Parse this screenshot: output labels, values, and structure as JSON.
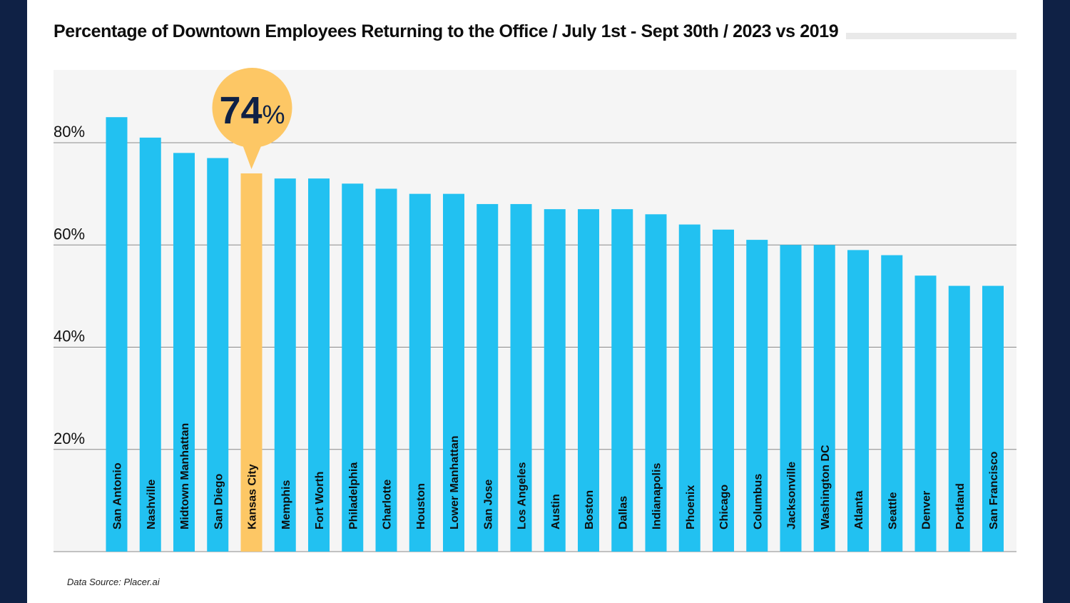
{
  "source_note": "Data Source: Placer.ai",
  "colors": {
    "bar": "#22c1f1",
    "highlight": "#fdc765",
    "panel": "#f5f5f5",
    "frame": "#0f2145"
  },
  "chart_data": {
    "type": "bar",
    "title": "Percentage of Downtown Employees Returning to the Office / July 1st - Sept 30th / 2023 vs 2019",
    "xlabel": "",
    "ylabel": "",
    "ylim": [
      0,
      92
    ],
    "yticks": [
      20,
      40,
      60,
      80
    ],
    "ytick_labels": [
      "20%",
      "40%",
      "60%",
      "80%"
    ],
    "grid": true,
    "categories": [
      "San Antonio",
      "Nashville",
      "Midtown Manhattan",
      "San Diego",
      "Kansas City",
      "Memphis",
      "Fort Worth",
      "Philadelphia",
      "Charlotte",
      "Houston",
      "Lower Manhattan",
      "San Jose",
      "Los Angeles",
      "Austin",
      "Boston",
      "Dallas",
      "Indianapolis",
      "Phoenix",
      "Chicago",
      "Columbus",
      "Jacksonville",
      "Washington DC",
      "Atlanta",
      "Seattle",
      "Denver",
      "Portland",
      "San Francisco"
    ],
    "values": [
      85,
      81,
      78,
      77,
      74,
      73,
      73,
      72,
      71,
      70,
      70,
      68,
      68,
      67,
      67,
      67,
      66,
      64,
      63,
      61,
      60,
      60,
      59,
      58,
      54,
      52,
      52
    ],
    "highlight_index": 4,
    "callout": {
      "number": "74",
      "unit": "%"
    }
  }
}
